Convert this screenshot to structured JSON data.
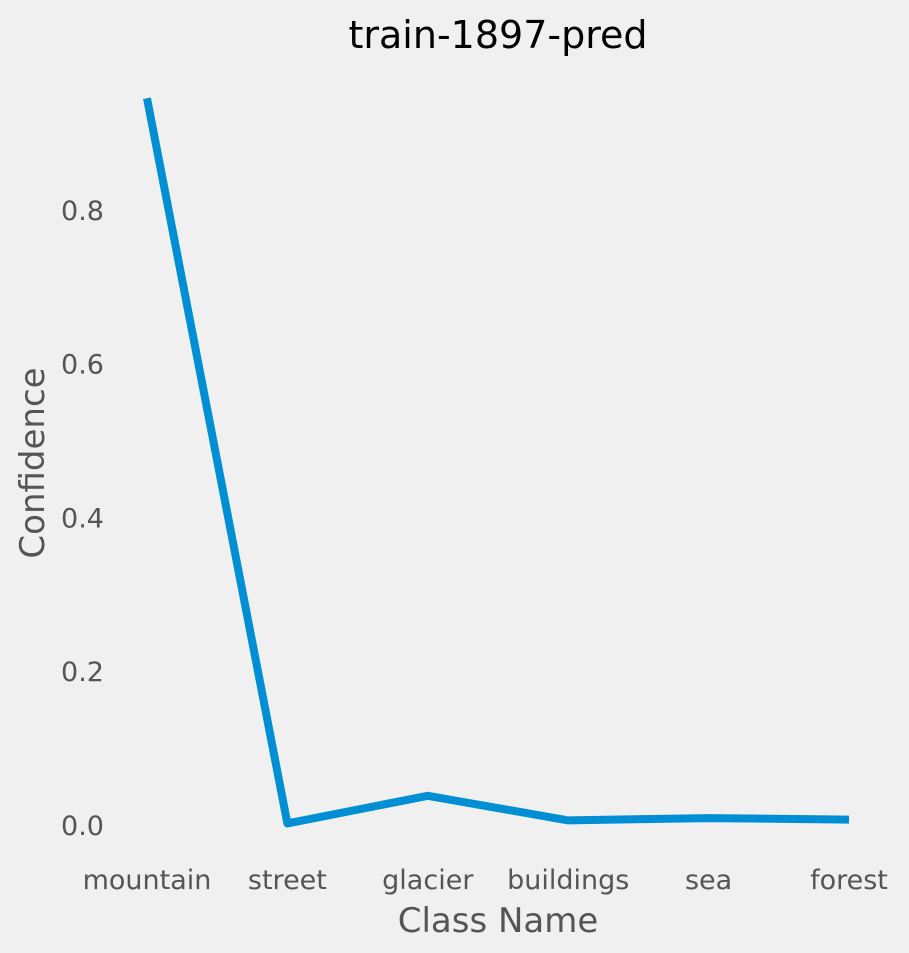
{
  "chart_data": {
    "type": "line",
    "title": "train-1897-pred",
    "xlabel": "Class Name",
    "ylabel": "Confidence",
    "categories": [
      "mountain",
      "street",
      "glacier",
      "buildings",
      "sea",
      "forest"
    ],
    "values": [
      0.945,
      0.002,
      0.038,
      0.006,
      0.009,
      0.007
    ],
    "yticks": [
      0.0,
      0.2,
      0.4,
      0.6,
      0.8
    ],
    "ylim": [
      -0.02,
      0.99
    ],
    "grid": false,
    "line_color": "#008fd5",
    "background": "#f0f0f0"
  }
}
